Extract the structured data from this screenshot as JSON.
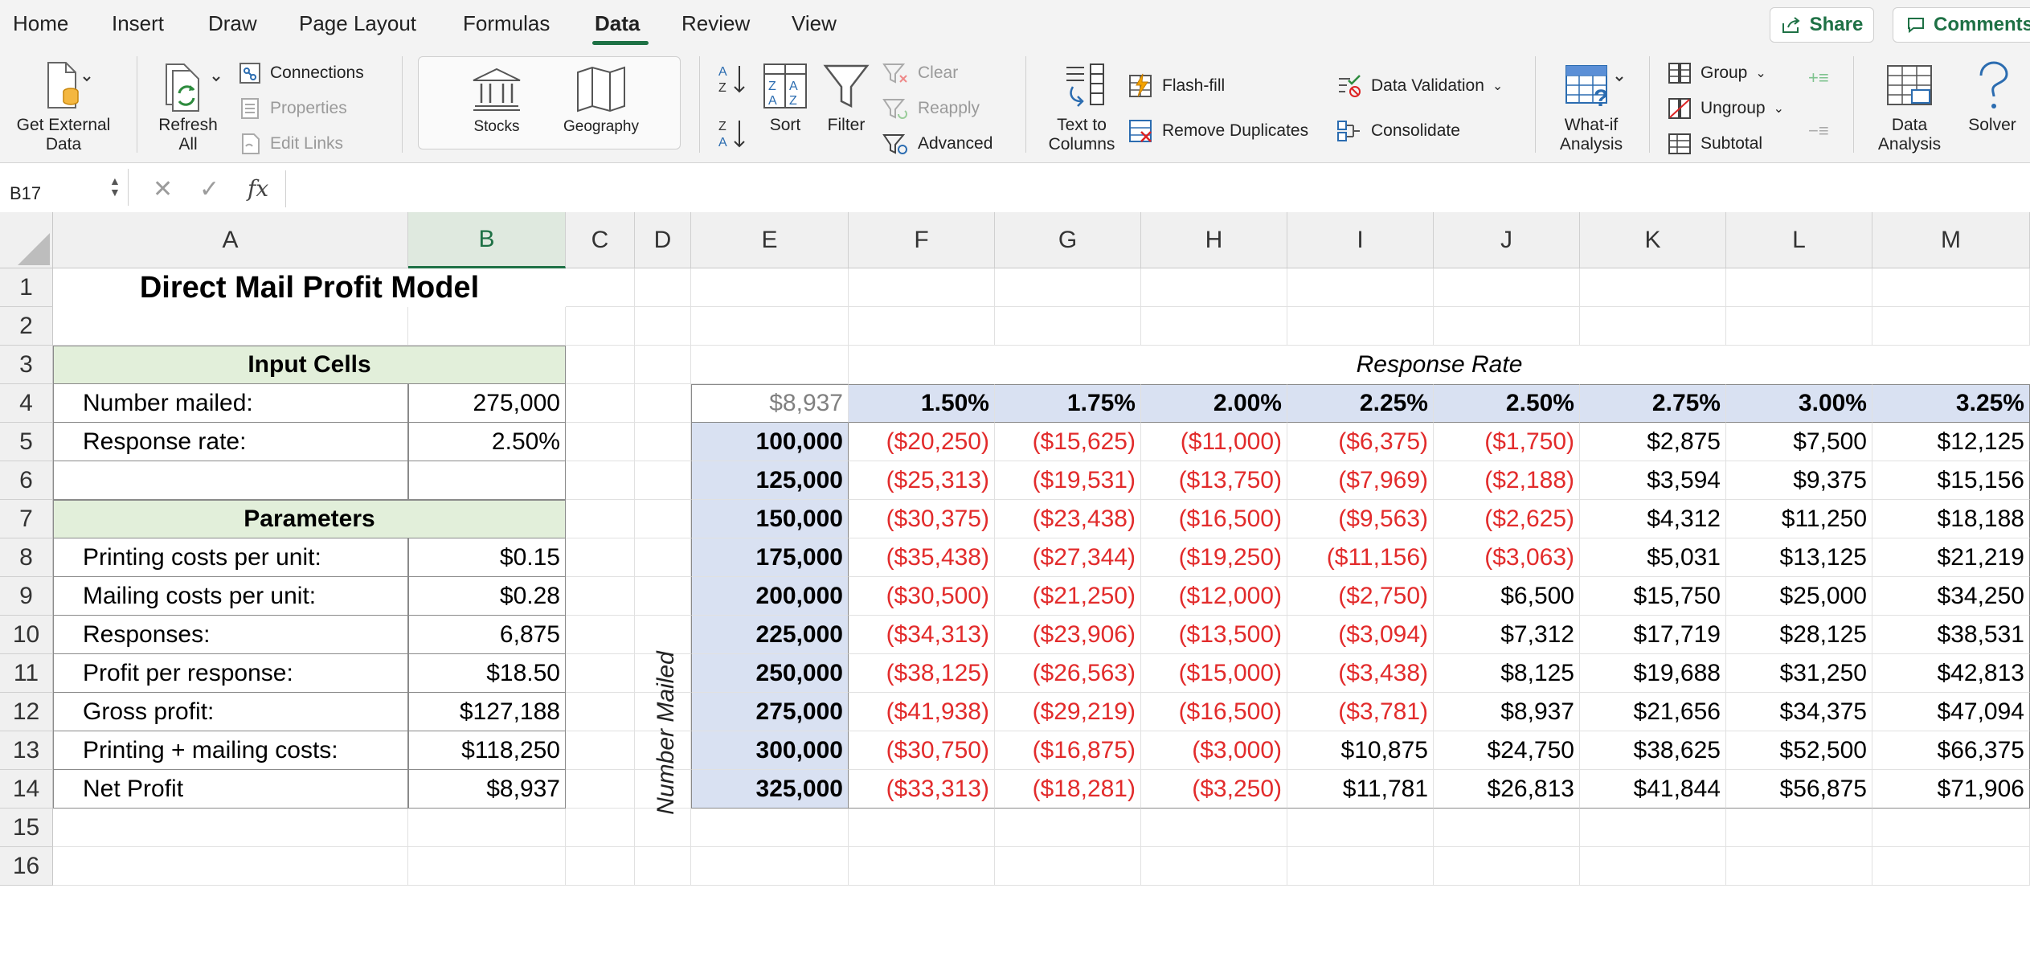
{
  "menu": {
    "tabs": [
      "Home",
      "Insert",
      "Draw",
      "Page Layout",
      "Formulas",
      "Data",
      "Review",
      "View"
    ],
    "active_tab": "Data",
    "share_label": "Share",
    "comments_label": "Comments"
  },
  "ribbon": {
    "get_external_data": "Get External\nData",
    "refresh_all": "Refresh\nAll",
    "connections": "Connections",
    "properties": "Properties",
    "edit_links": "Edit Links",
    "stocks": "Stocks",
    "geography": "Geography",
    "sort": "Sort",
    "filter": "Filter",
    "clear": "Clear",
    "reapply": "Reapply",
    "advanced": "Advanced",
    "text_to_columns": "Text to\nColumns",
    "flash_fill": "Flash-fill",
    "remove_duplicates": "Remove Duplicates",
    "data_validation": "Data Validation",
    "consolidate": "Consolidate",
    "what_if": "What-if\nAnalysis",
    "group": "Group",
    "ungroup": "Ungroup",
    "subtotal": "Subtotal",
    "data_analysis": "Data\nAnalysis",
    "solver": "Solver"
  },
  "formula_bar": {
    "name_box": "B17",
    "formula": ""
  },
  "grid": {
    "columns": [
      "A",
      "B",
      "C",
      "D",
      "E",
      "F",
      "G",
      "H",
      "I",
      "J",
      "K",
      "L",
      "M"
    ],
    "selected_column": "B",
    "rows": [
      "1",
      "2",
      "3",
      "4",
      "5",
      "6",
      "7",
      "8",
      "9",
      "10",
      "11",
      "12",
      "13",
      "14",
      "15",
      "16"
    ],
    "title": "Direct Mail Profit Model",
    "input_cells_header": "Input Cells",
    "parameters_header": "Parameters",
    "left_table": [
      {
        "label": "Number mailed:",
        "value": "275,000"
      },
      {
        "label": "Response rate:",
        "value": "2.50%"
      },
      {
        "label": "",
        "value": ""
      },
      {
        "label": "",
        "value": ""
      },
      {
        "label": "Printing costs per unit:",
        "value": "$0.15"
      },
      {
        "label": "Mailing costs per unit:",
        "value": "$0.28"
      },
      {
        "label": "Responses:",
        "value": "6,875"
      },
      {
        "label": "Profit per response:",
        "value": "$18.50"
      },
      {
        "label": "Gross profit:",
        "value": "$127,188"
      },
      {
        "label": "Printing + mailing costs:",
        "value": "$118,250"
      },
      {
        "label": "Net Profit",
        "value": "$8,937"
      }
    ],
    "response_rate_label": "Response Rate",
    "number_mailed_label": "Number Mailed",
    "table_corner": "$8,937",
    "rates": [
      "1.50%",
      "1.75%",
      "2.00%",
      "2.25%",
      "2.50%",
      "2.75%",
      "3.00%",
      "3.25%"
    ],
    "mailed": [
      "100,000",
      "125,000",
      "150,000",
      "175,000",
      "200,000",
      "225,000",
      "250,000",
      "275,000",
      "300,000",
      "325,000"
    ],
    "profits": [
      [
        "($20,250)",
        "($15,625)",
        "($11,000)",
        "($6,375)",
        "($1,750)",
        "$2,875",
        "$7,500",
        "$12,125"
      ],
      [
        "($25,313)",
        "($19,531)",
        "($13,750)",
        "($7,969)",
        "($2,188)",
        "$3,594",
        "$9,375",
        "$15,156"
      ],
      [
        "($30,375)",
        "($23,438)",
        "($16,500)",
        "($9,563)",
        "($2,625)",
        "$4,312",
        "$11,250",
        "$18,188"
      ],
      [
        "($35,438)",
        "($27,344)",
        "($19,250)",
        "($11,156)",
        "($3,063)",
        "$5,031",
        "$13,125",
        "$21,219"
      ],
      [
        "($30,500)",
        "($21,250)",
        "($12,000)",
        "($2,750)",
        "$6,500",
        "$15,750",
        "$25,000",
        "$34,250"
      ],
      [
        "($34,313)",
        "($23,906)",
        "($13,500)",
        "($3,094)",
        "$7,312",
        "$17,719",
        "$28,125",
        "$38,531"
      ],
      [
        "($38,125)",
        "($26,563)",
        "($15,000)",
        "($3,438)",
        "$8,125",
        "$19,688",
        "$31,250",
        "$42,813"
      ],
      [
        "($41,938)",
        "($29,219)",
        "($16,500)",
        "($3,781)",
        "$8,937",
        "$21,656",
        "$34,375",
        "$47,094"
      ],
      [
        "($30,750)",
        "($16,875)",
        "($3,000)",
        "$10,875",
        "$24,750",
        "$38,625",
        "$52,500",
        "$66,375"
      ],
      [
        "($33,313)",
        "($18,281)",
        "($3,250)",
        "$11,781",
        "$26,813",
        "$41,844",
        "$56,875",
        "$71,906"
      ]
    ]
  },
  "colors": {
    "accent": "#1e7145",
    "negative": "#e22b2b",
    "input_fill": "#e2efda",
    "table_fill": "#d9e1f2"
  }
}
